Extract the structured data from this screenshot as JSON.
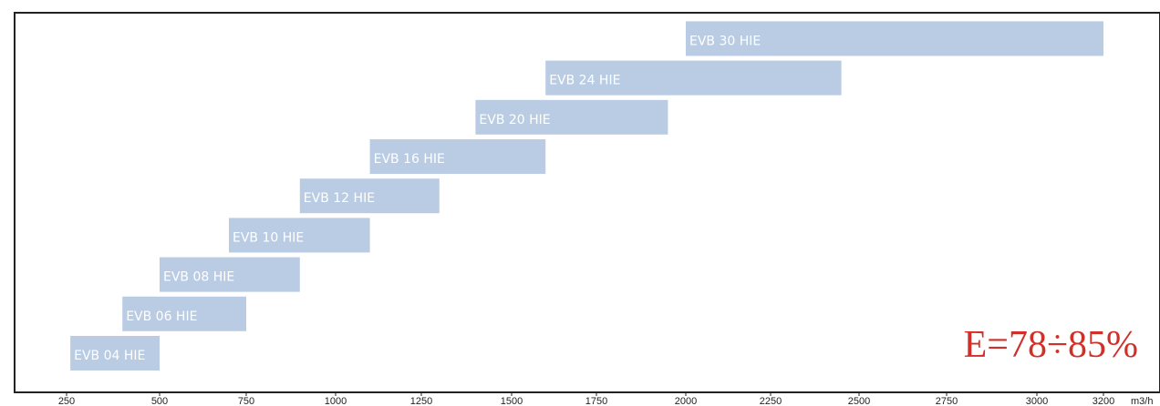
{
  "chart_data": {
    "type": "bar",
    "orientation": "horizontal-range",
    "title": "",
    "xlabel": "m3/h",
    "ylabel": "",
    "xlim": [
      250,
      3200
    ],
    "xticks": [
      "250",
      "500",
      "750",
      "1000",
      "1250",
      "1500",
      "1750",
      "2000",
      "2250",
      "2500",
      "2750",
      "3000",
      "3200"
    ],
    "categories": [
      "EVB 04 HIE",
      "EVB 06 HIE",
      "EVB 08 HIE",
      "EVB 10 HIE",
      "EVB 12 HIE",
      "EVB 16 HIE",
      "EVB 20 HIE",
      "EVB 24 HIE",
      "EVB 30 HIE"
    ],
    "ranges": [
      {
        "name": "EVB 04 HIE",
        "start": 260,
        "end": 500
      },
      {
        "name": "EVB 06 HIE",
        "start": 400,
        "end": 750
      },
      {
        "name": "EVB 08 HIE",
        "start": 500,
        "end": 900
      },
      {
        "name": "EVB 10 HIE",
        "start": 700,
        "end": 1100
      },
      {
        "name": "EVB 12 HIE",
        "start": 900,
        "end": 1300
      },
      {
        "name": "EVB 16 HIE",
        "start": 1100,
        "end": 1600
      },
      {
        "name": "EVB 20 HIE",
        "start": 1400,
        "end": 1950
      },
      {
        "name": "EVB 24 HIE",
        "start": 1600,
        "end": 2450
      },
      {
        "name": "EVB 30 HIE",
        "start": 2000,
        "end": 3200
      }
    ],
    "annotation": "E=78÷85%",
    "grid": false,
    "legend": "none"
  },
  "colors": {
    "bar": "#b9cce4",
    "bar_text": "#ffffff",
    "annotation": "#d0302a",
    "frame": "#222222"
  }
}
